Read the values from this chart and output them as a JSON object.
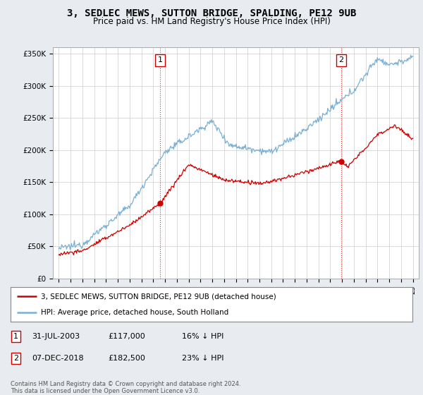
{
  "title": "3, SEDLEC MEWS, SUTTON BRIDGE, SPALDING, PE12 9UB",
  "subtitle": "Price paid vs. HM Land Registry's House Price Index (HPI)",
  "ylim": [
    0,
    360000
  ],
  "yticks": [
    0,
    50000,
    100000,
    150000,
    200000,
    250000,
    300000,
    350000
  ],
  "ytick_labels": [
    "£0",
    "£50K",
    "£100K",
    "£150K",
    "£200K",
    "£250K",
    "£300K",
    "£350K"
  ],
  "line1_color": "#cc0000",
  "line2_color": "#7ab0d4",
  "vline_color": "#cc0000",
  "background_color": "#e8ecf0",
  "plot_bg_color": "#ffffff",
  "legend_line1": "3, SEDLEC MEWS, SUTTON BRIDGE, PE12 9UB (detached house)",
  "legend_line2": "HPI: Average price, detached house, South Holland",
  "table_row1": [
    "1",
    "31-JUL-2003",
    "£117,000",
    "16% ↓ HPI"
  ],
  "table_row2": [
    "2",
    "07-DEC-2018",
    "£182,500",
    "23% ↓ HPI"
  ],
  "footnote": "Contains HM Land Registry data © Crown copyright and database right 2024.\nThis data is licensed under the Open Government Licence v3.0.",
  "sale1_year": 2003.58,
  "sale1_price": 117000,
  "sale2_year": 2018.92,
  "sale2_price": 182500,
  "title_fontsize": 10,
  "subtitle_fontsize": 8.5
}
